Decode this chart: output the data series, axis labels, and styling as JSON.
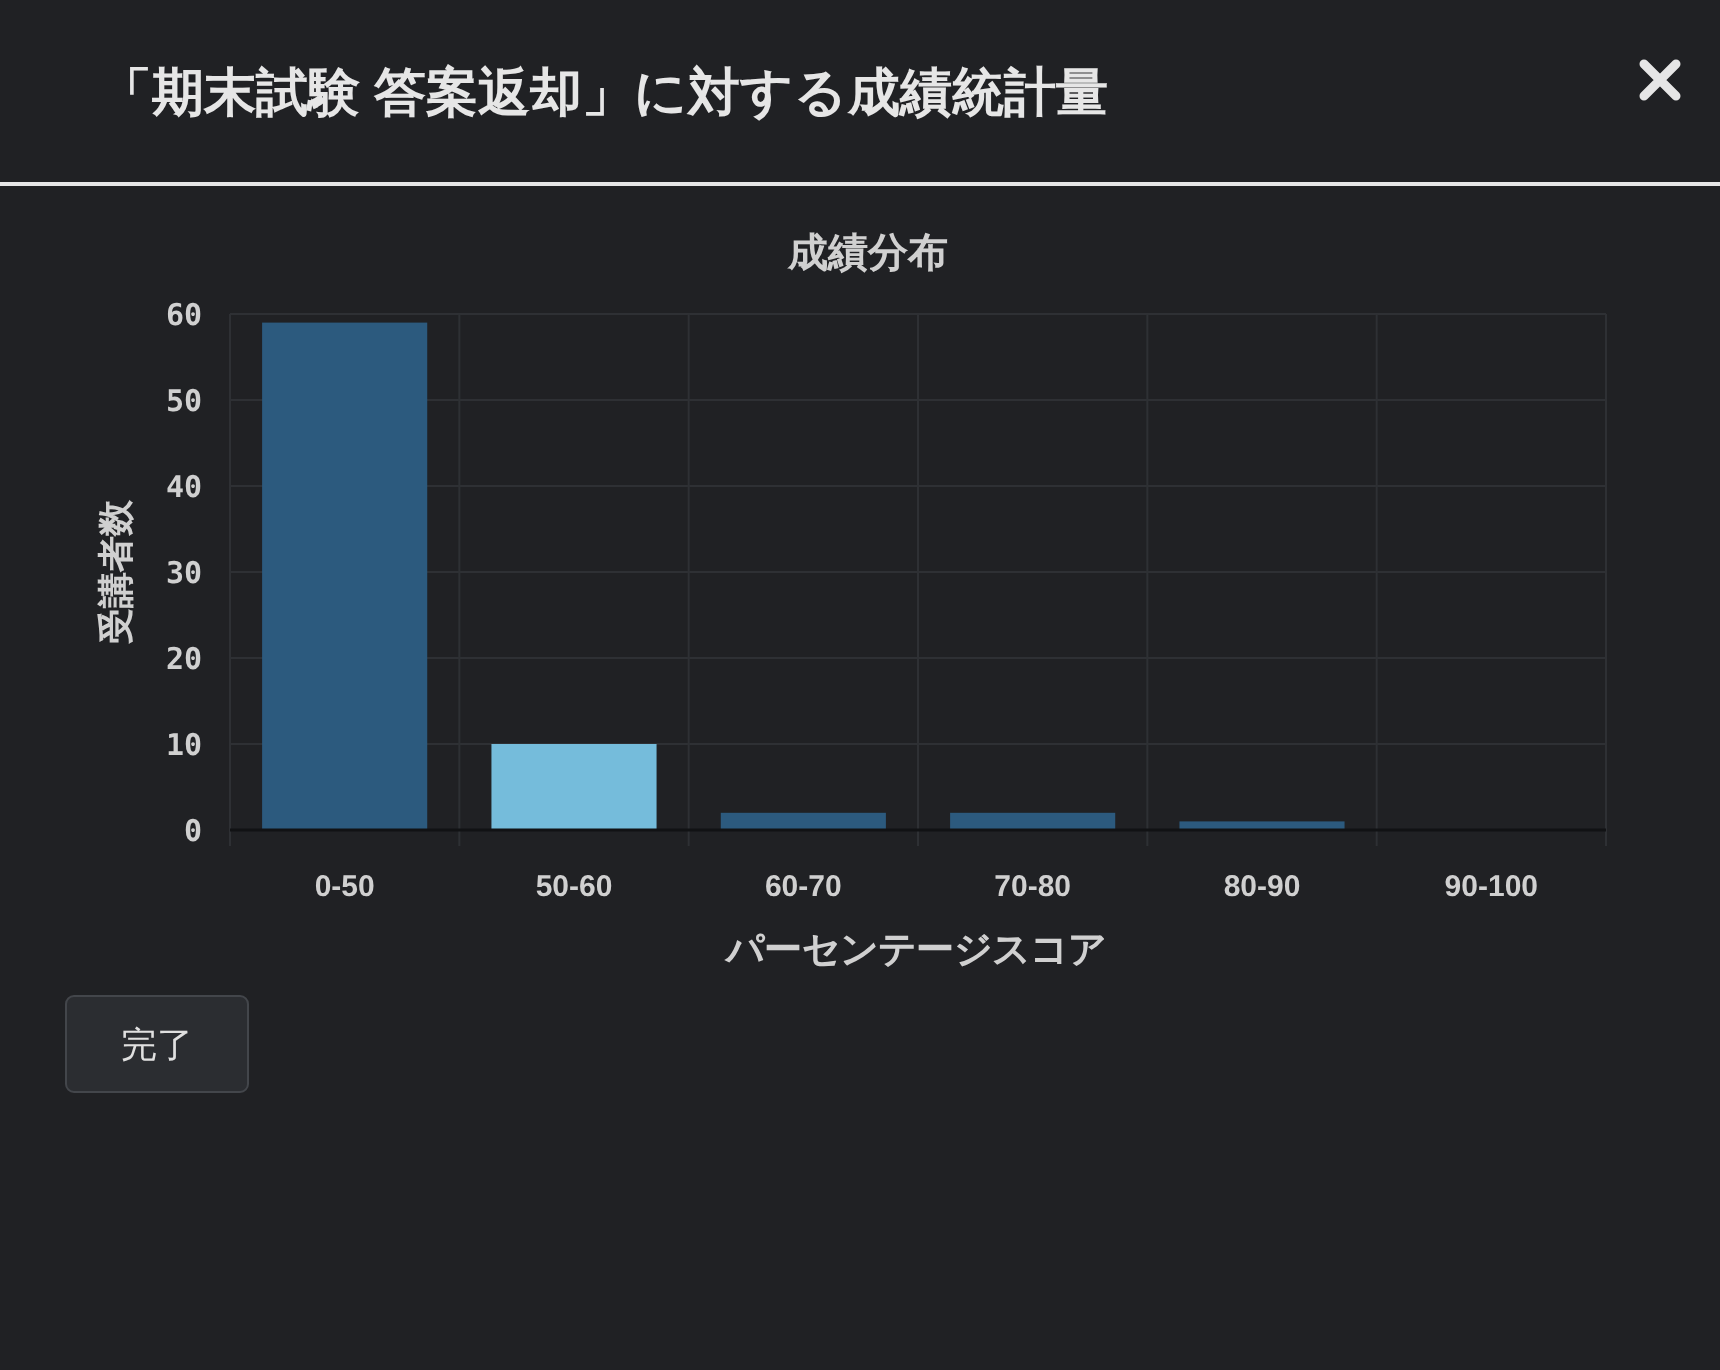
{
  "chart_data": {
    "type": "bar",
    "title": "「期末試験 答案返却」に対する成績統計量",
    "subtitle": "成績分布",
    "xlabel": "パーセンテージスコア",
    "ylabel": "受講者数",
    "categories": [
      "0-50",
      "50-60",
      "60-70",
      "70-80",
      "80-90",
      "90-100"
    ],
    "values": [
      59,
      10,
      2,
      2,
      1,
      0
    ],
    "colors": [
      "#2c5a7e",
      "#75bcdb",
      "#2c5a7e",
      "#2c5a7e",
      "#2c5a7e",
      "#2c5a7e"
    ],
    "ylim": [
      0,
      60
    ],
    "yticks": [
      0,
      10,
      20,
      30,
      40,
      50,
      60
    ],
    "grid": true,
    "annotations": [
      "完了"
    ]
  }
}
